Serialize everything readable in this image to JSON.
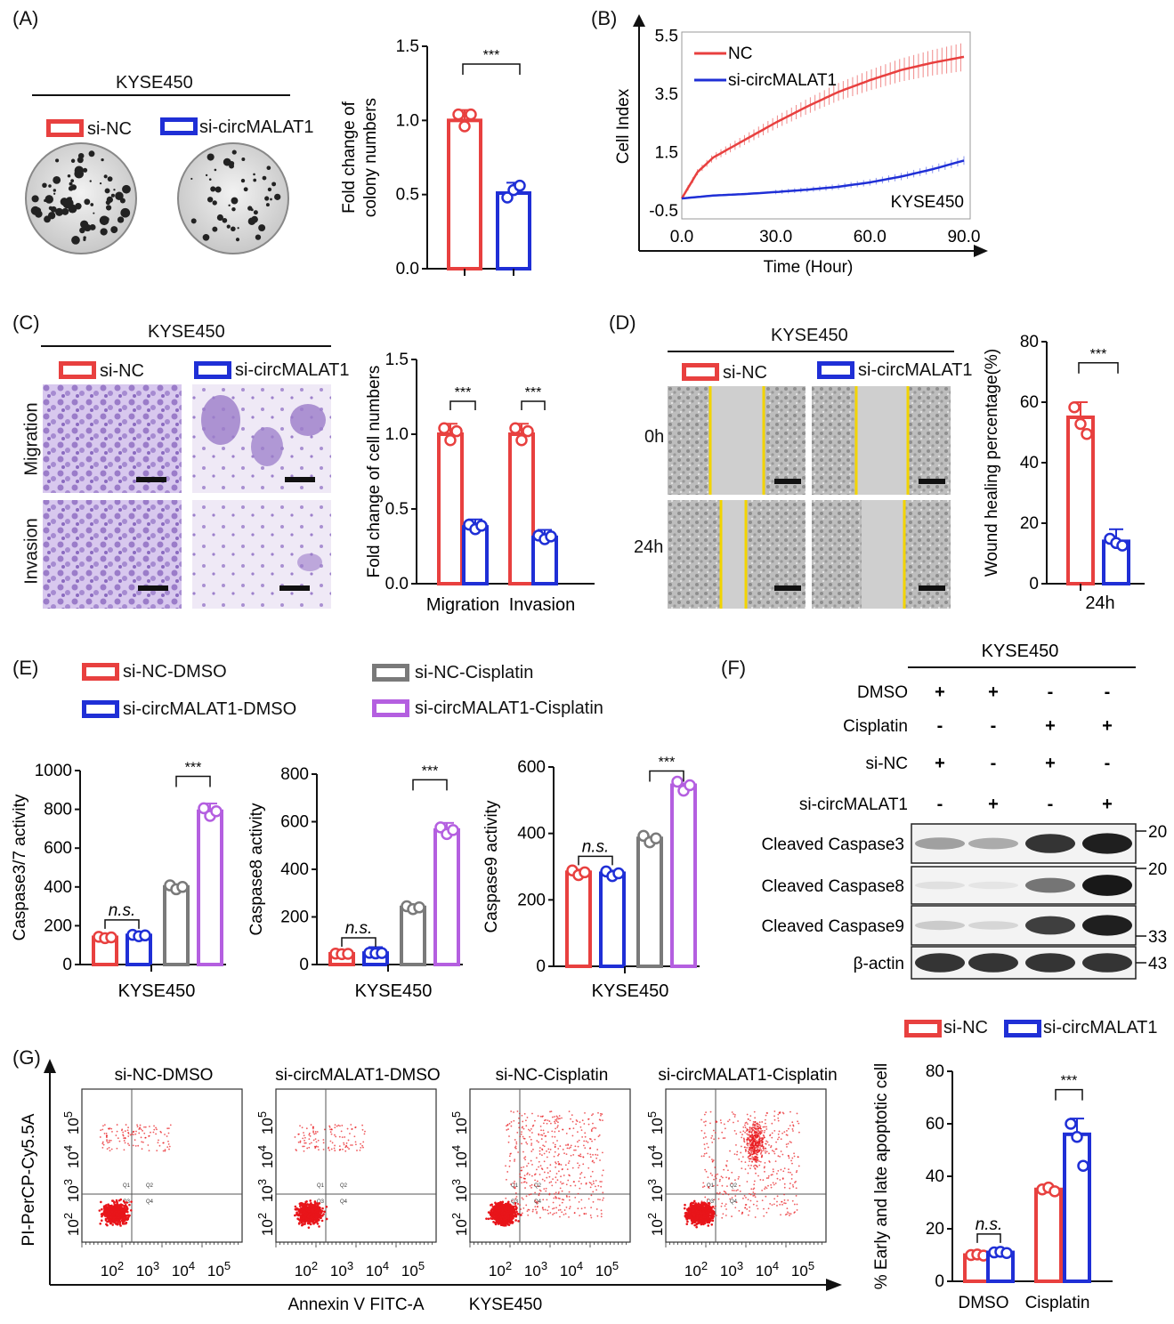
{
  "colors": {
    "red": "#e8403f",
    "blue": "#1f2fd6",
    "gray": "#7a7a7a",
    "purple": "#b45fe0",
    "yellow": "#f2d400",
    "stain": "#9b7cc9"
  },
  "panelA": {
    "label": "(A)",
    "cell_line": "KYSE450",
    "legend": [
      "si-NC",
      "si-circMALAT1"
    ],
    "chart_data": {
      "type": "bar",
      "categories": [
        "si-NC",
        "si-circMALAT1"
      ],
      "values": [
        1.0,
        0.51
      ],
      "errors": [
        0.07,
        0.07
      ],
      "points": [
        [
          1.04,
          0.96,
          1.04
        ],
        [
          0.48,
          0.53,
          0.56
        ]
      ],
      "ylabel": "Fold change of colony numbers",
      "ylim": [
        0,
        1.5
      ],
      "yticks": [
        "0.0",
        "0.5",
        "1.0",
        "1.5"
      ],
      "significance": "***"
    }
  },
  "panelB": {
    "label": "(B)",
    "chart_data": {
      "type": "line",
      "xlabel": "Time (Hour)",
      "ylabel": "Cell Index",
      "xticks": [
        "0.0",
        "30.0",
        "60.0",
        "90.0"
      ],
      "yticks": [
        "-0.5",
        "1.5",
        "3.5",
        "5.5"
      ],
      "xlim": [
        0,
        92
      ],
      "ylim": [
        -0.8,
        5.6
      ],
      "annotation": "KYSE450",
      "series": [
        {
          "name": "NC",
          "x": [
            0,
            5,
            10,
            20,
            30,
            40,
            50,
            60,
            70,
            80,
            90
          ],
          "y": [
            -0.1,
            0.8,
            1.3,
            1.9,
            2.5,
            3.05,
            3.55,
            3.95,
            4.3,
            4.55,
            4.75
          ]
        },
        {
          "name": "si-circMALAT1",
          "x": [
            0,
            10,
            20,
            30,
            40,
            50,
            60,
            70,
            80,
            90
          ],
          "y": [
            -0.1,
            0.0,
            0.05,
            0.12,
            0.2,
            0.3,
            0.45,
            0.65,
            0.9,
            1.2
          ]
        }
      ]
    }
  },
  "panelC": {
    "label": "(C)",
    "cell_line": "KYSE450",
    "legend": [
      "si-NC",
      "si-circMALAT1"
    ],
    "row_labels": [
      "Migration",
      "Invasion"
    ],
    "chart_data": {
      "type": "bar",
      "categories": [
        "Migration",
        "Invasion"
      ],
      "series": [
        {
          "name": "si-NC",
          "values": [
            1.0,
            1.0
          ],
          "errors": [
            0.07,
            0.07
          ]
        },
        {
          "name": "si-circMALAT1",
          "values": [
            0.38,
            0.31
          ],
          "errors": [
            0.05,
            0.05
          ]
        }
      ],
      "ylabel": "Fold change of cell numbers",
      "ylim": [
        0,
        1.5
      ],
      "yticks": [
        "0.0",
        "0.5",
        "1.0",
        "1.5"
      ],
      "significance": [
        "***",
        "***"
      ]
    }
  },
  "panelD": {
    "label": "(D)",
    "cell_line": "KYSE450",
    "legend": [
      "si-NC",
      "si-circMALAT1"
    ],
    "row_labels": [
      "0h",
      "24h"
    ],
    "chart_data": {
      "type": "bar",
      "categories": [
        "24h"
      ],
      "series": [
        {
          "name": "si-NC",
          "values": [
            55
          ],
          "errors": [
            5
          ]
        },
        {
          "name": "si-circMALAT1",
          "values": [
            14
          ],
          "errors": [
            4
          ]
        }
      ],
      "ylabel": "Wound healing percentage(%)",
      "ylim": [
        0,
        80
      ],
      "yticks": [
        "0",
        "20",
        "40",
        "60",
        "80"
      ],
      "significance": "***"
    }
  },
  "panelE": {
    "label": "(E)",
    "legend": [
      "si-NC-DMSO",
      "si-NC-Cisplatin",
      "si-circMALAT1-DMSO",
      "si-circMALAT1-Cisplatin"
    ],
    "chart_data": [
      {
        "type": "bar",
        "ylabel": "Caspase3/7 activity",
        "xlabel": "KYSE450",
        "values": [
          140,
          150,
          400,
          790
        ],
        "errors": [
          10,
          10,
          8,
          40
        ],
        "ylim": [
          0,
          1000
        ],
        "yticks": [
          "0",
          "200",
          "400",
          "600",
          "800",
          "1000"
        ],
        "ns": "n.s.",
        "significance": "***"
      },
      {
        "type": "bar",
        "ylabel": "Caspase8 activity",
        "xlabel": "KYSE450",
        "values": [
          45,
          48,
          240,
          565
        ],
        "errors": [
          8,
          25,
          6,
          30
        ],
        "ylim": [
          0,
          800
        ],
        "yticks": [
          "0",
          "200",
          "400",
          "600",
          "800"
        ],
        "ns": "n.s.",
        "significance": "***"
      },
      {
        "type": "bar",
        "ylabel": "Caspase9 activity",
        "xlabel": "KYSE450",
        "values": [
          283,
          280,
          385,
          545
        ],
        "errors": [
          8,
          8,
          5,
          5
        ],
        "ylim": [
          0,
          600
        ],
        "yticks": [
          "0",
          "200",
          "400",
          "600"
        ],
        "ns": "n.s.",
        "significance": "***"
      }
    ]
  },
  "panelF": {
    "label": "(F)",
    "cell_line": "KYSE450",
    "treatments": [
      {
        "name": "DMSO",
        "values": [
          "+",
          "+",
          "-",
          "-"
        ]
      },
      {
        "name": "Cisplatin",
        "values": [
          "-",
          "-",
          "+",
          "+"
        ]
      },
      {
        "name": "si-NC",
        "values": [
          "+",
          "-",
          "+",
          "-"
        ]
      },
      {
        "name": "si-circMALAT1",
        "values": [
          "-",
          "+",
          "-",
          "+"
        ]
      }
    ],
    "blots": [
      {
        "name": "Cleaved Caspase3",
        "intensity": [
          0.35,
          0.3,
          0.85,
          0.95
        ],
        "marker": "20"
      },
      {
        "name": "Cleaved Caspase8",
        "intensity": [
          0.05,
          0.03,
          0.55,
          0.98
        ],
        "marker": "20"
      },
      {
        "name": "Cleaved Caspase9",
        "intensity": [
          0.15,
          0.1,
          0.8,
          0.95
        ],
        "marker": "33"
      },
      {
        "name": "β-actin",
        "intensity": [
          0.85,
          0.85,
          0.85,
          0.85
        ],
        "marker": "43"
      }
    ]
  },
  "panelG": {
    "label": "(G)",
    "plots": [
      "si-NC-DMSO",
      "si-circMALAT1-DMSO",
      "si-NC-Cisplatin",
      "si-circMALAT1-Cisplatin"
    ],
    "yaxis": "PI-PerCP-Cy5.5A",
    "xaxis": "Annexin V FITC-A",
    "cell_line": "KYSE450",
    "quadrants": [
      "Q1",
      "Q2",
      "Q3",
      "Q4"
    ],
    "legend": [
      "si-NC",
      "si-circMALAT1"
    ],
    "chart_data": {
      "type": "bar",
      "categories": [
        "DMSO",
        "Cisplatin"
      ],
      "series": [
        {
          "name": "si-NC",
          "values": [
            10,
            35
          ],
          "errors": [
            1,
            1
          ]
        },
        {
          "name": "si-circMALAT1",
          "values": [
            11,
            56
          ],
          "errors": [
            1,
            6
          ]
        }
      ],
      "ylabel": "% Early and late apoptotic cell",
      "ylim": [
        0,
        80
      ],
      "yticks": [
        "0",
        "20",
        "40",
        "60",
        "80"
      ],
      "ns": "n.s.",
      "significance": "***"
    }
  }
}
